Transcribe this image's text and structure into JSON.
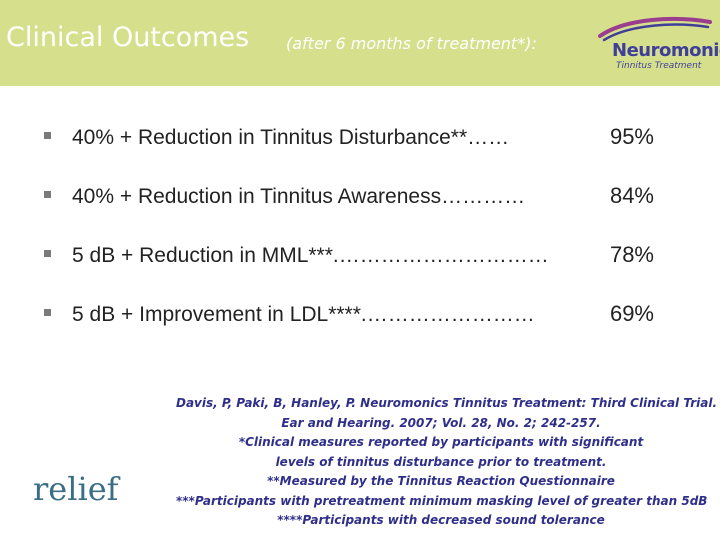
{
  "header": {
    "title": "Clinical Outcomes",
    "subtitle": "(after 6 months of treatment*):",
    "logo": {
      "name": "Neuromonics",
      "tagline": "Tinnitus Treatment"
    }
  },
  "bullets": [
    {
      "text": "40% + Reduction in Tinnitus Disturbance**……",
      "value": "95%"
    },
    {
      "text": "40% + Reduction in Tinnitus Awareness…………",
      "value": "84%"
    },
    {
      "text": "5 dB + Reduction in MML***.…………………………",
      "value": "78%"
    },
    {
      "text": "5 dB + Improvement in LDL****.……………………",
      "value": "69%"
    }
  ],
  "relief_label": "relief",
  "citations": [
    "Davis, P, Paki, B, Hanley, P. Neuromonics Tinnitus Treatment: Third Clinical Trial.",
    "Ear and Hearing. 2007; Vol. 28, No. 2; 242-257.",
    "*Clinical measures reported by participants with significant",
    "levels of tinnitus disturbance prior to treatment.",
    "**Measured by the Tinnitus Reaction Questionnaire",
    "***Participants with pretreatment minimum masking level of greater than 5dB",
    "****Participants with decreased sound tolerance"
  ],
  "colors": {
    "header_bg": "#d6e08c",
    "logo_purple": "#3f3f9a",
    "logo_swoosh": "#9b3d8f",
    "citation_text": "#2f2f8a",
    "relief_text": "#3a6e86"
  }
}
